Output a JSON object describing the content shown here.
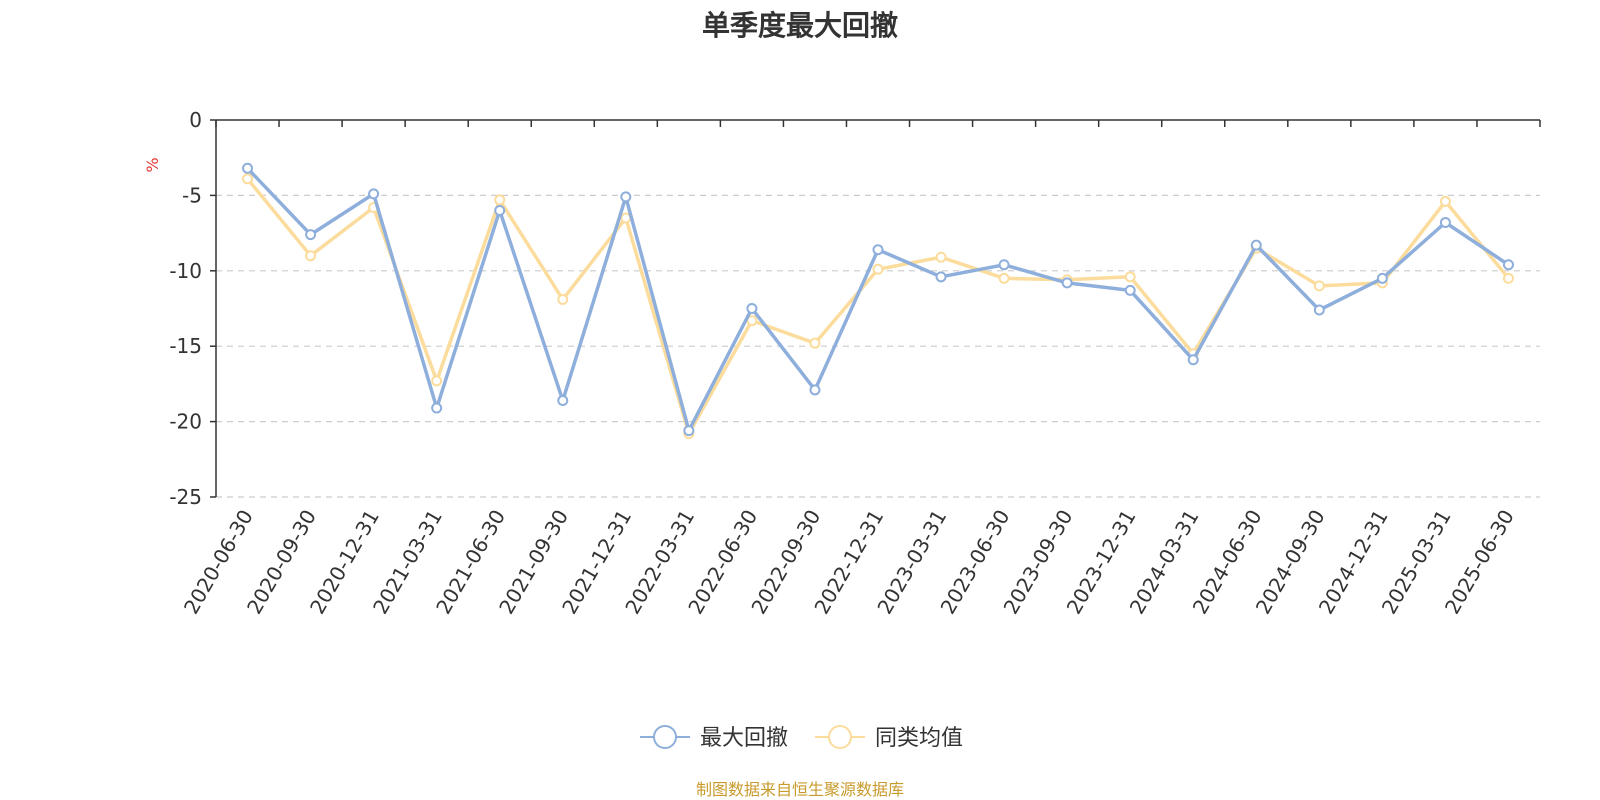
{
  "chart_data": {
    "type": "line",
    "title": "单季度最大回撤",
    "ylabel": "%",
    "ylim": [
      -25,
      0
    ],
    "yticks": [
      0,
      -5,
      -10,
      -15,
      -20,
      -25
    ],
    "grid": true,
    "legend_position": "bottom-center",
    "categories": [
      "2020-06-30",
      "2020-09-30",
      "2020-12-31",
      "2021-03-31",
      "2021-06-30",
      "2021-09-30",
      "2021-12-31",
      "2022-03-31",
      "2022-06-30",
      "2022-09-30",
      "2022-12-31",
      "2023-03-31",
      "2023-06-30",
      "2023-09-30",
      "2023-12-31",
      "2024-03-31",
      "2024-06-30",
      "2024-09-30",
      "2024-12-31",
      "2025-03-31",
      "2025-06-30"
    ],
    "series": [
      {
        "name": "最大回撤",
        "color": "#8eaedb",
        "values": [
          -3.2,
          -7.6,
          -4.9,
          -19.1,
          -6.0,
          -18.6,
          -5.1,
          -20.6,
          -12.5,
          -17.9,
          -8.6,
          -10.4,
          -9.6,
          -10.8,
          -11.3,
          -15.9,
          -8.3,
          -12.6,
          -10.5,
          -6.8,
          -9.6
        ]
      },
      {
        "name": "同类均值",
        "color": "#fbdc9c",
        "values": [
          -3.9,
          -9.0,
          -5.8,
          -17.3,
          -5.3,
          -11.9,
          -6.5,
          -20.8,
          -13.3,
          -14.8,
          -9.9,
          -9.1,
          -10.5,
          -10.6,
          -10.4,
          -15.5,
          -8.5,
          -11.0,
          -10.8,
          -5.4,
          -10.5
        ]
      }
    ]
  },
  "footer": {
    "source": "制图数据来自恒生聚源数据库"
  }
}
